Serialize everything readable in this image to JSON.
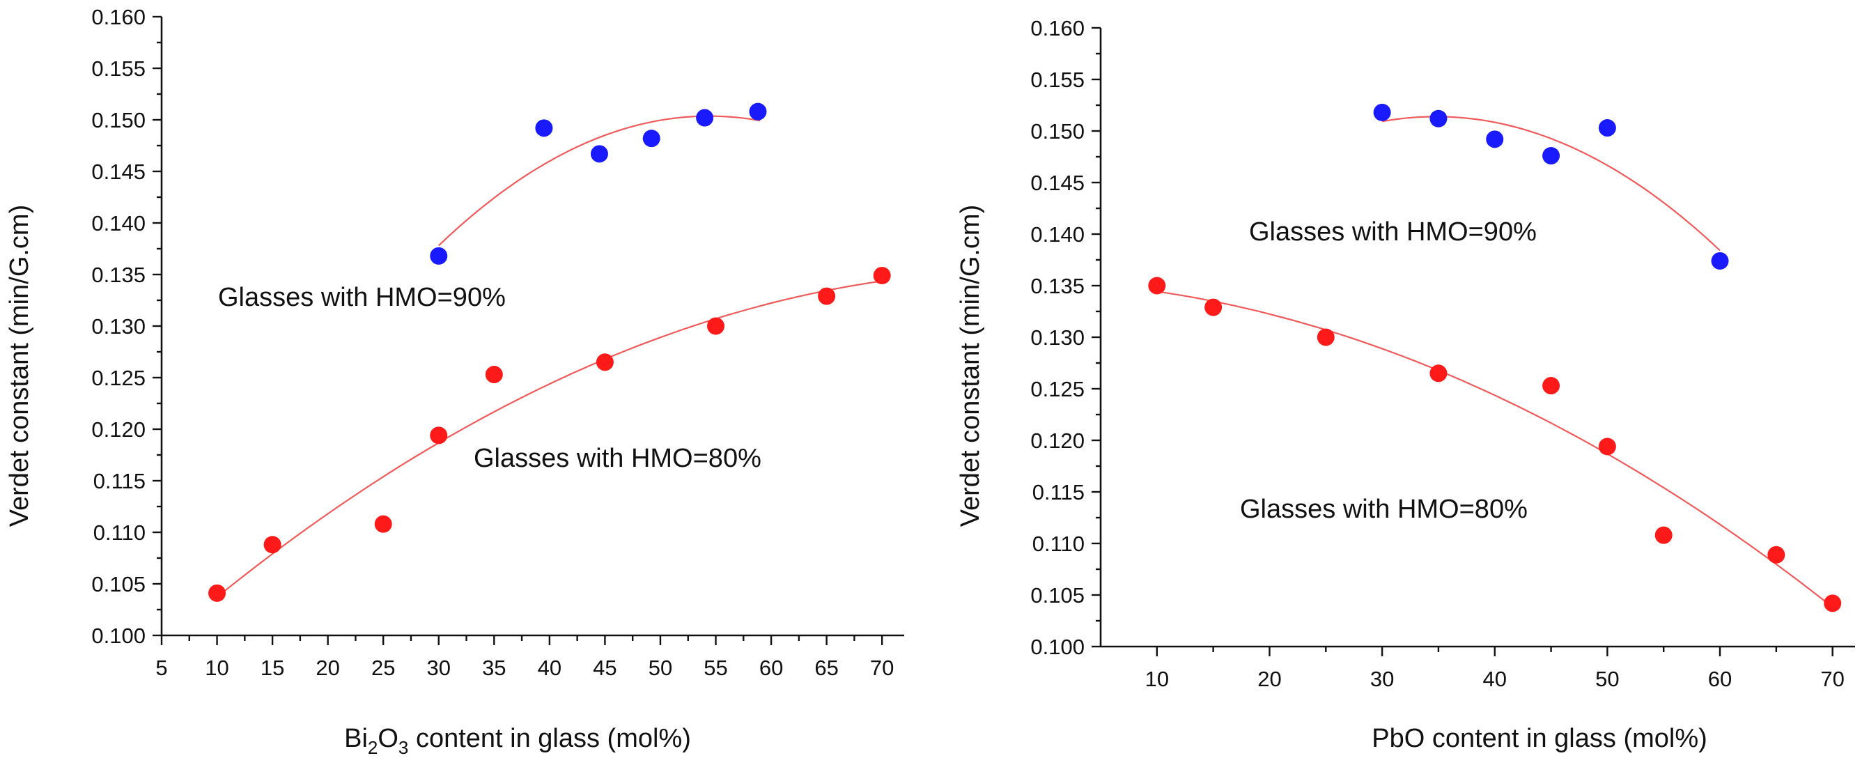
{
  "chart_data": [
    {
      "type": "scatter",
      "xlabel": {
        "pre": "Bi",
        "sub1": "2",
        "mid": "O",
        "sub2": "3",
        "post": " content in glass (mol%)"
      },
      "ylabel": "Verdet constant (min/G.cm)",
      "xlim": [
        5,
        72
      ],
      "ylim": [
        0.1,
        0.16
      ],
      "xticks": [
        "5",
        "10",
        "15",
        "20",
        "25",
        "30",
        "35",
        "40",
        "45",
        "50",
        "55",
        "60",
        "65",
        "70"
      ],
      "yticks": [
        "0.100",
        "0.105",
        "0.110",
        "0.115",
        "0.120",
        "0.125",
        "0.130",
        "0.135",
        "0.140",
        "0.145",
        "0.150",
        "0.155",
        "0.160"
      ],
      "series": [
        {
          "name": "Glasses with HMO=90%",
          "color": "#1a1aff",
          "points": [
            [
              30,
              0.1368
            ],
            [
              39.5,
              0.1492
            ],
            [
              44.5,
              0.1467
            ],
            [
              49.2,
              0.1482
            ],
            [
              54,
              0.1502
            ],
            [
              58.8,
              0.1508
            ]
          ],
          "fit_x": [
            30,
            59
          ]
        },
        {
          "name": "Glasses with HMO=80%",
          "color": "#ff1a1a",
          "points": [
            [
              10,
              0.1041
            ],
            [
              15,
              0.1088
            ],
            [
              25,
              0.1108
            ],
            [
              30,
              0.1194
            ],
            [
              35,
              0.1253
            ],
            [
              45,
              0.1265
            ],
            [
              55,
              0.13
            ],
            [
              65,
              0.1329
            ],
            [
              70,
              0.1349
            ]
          ],
          "fit_x": [
            10,
            70
          ]
        }
      ],
      "grid": false
    },
    {
      "type": "scatter",
      "xlabel": {
        "pre": "PbO content in glass (mol%)"
      },
      "ylabel": "Verdet constant (min/G.cm)",
      "xlim": [
        5,
        72
      ],
      "ylim": [
        0.1,
        0.16
      ],
      "xticks": [
        "10",
        "20",
        "30",
        "40",
        "50",
        "60",
        "70"
      ],
      "yticks": [
        "0.100",
        "0.105",
        "0.110",
        "0.115",
        "0.120",
        "0.125",
        "0.130",
        "0.135",
        "0.140",
        "0.145",
        "0.150",
        "0.155",
        "0.160"
      ],
      "series": [
        {
          "name": "Glasses with HMO=90%",
          "color": "#1a1aff",
          "points": [
            [
              30,
              0.1518
            ],
            [
              35,
              0.1512
            ],
            [
              40,
              0.1492
            ],
            [
              45,
              0.1476
            ],
            [
              50,
              0.1503
            ],
            [
              60,
              0.1374
            ]
          ],
          "fit_x": [
            30,
            60
          ]
        },
        {
          "name": "Glasses with HMO=80%",
          "color": "#ff1a1a",
          "points": [
            [
              10,
              0.135
            ],
            [
              15,
              0.1329
            ],
            [
              25,
              0.13
            ],
            [
              35,
              0.1265
            ],
            [
              45,
              0.1253
            ],
            [
              50,
              0.1194
            ],
            [
              55,
              0.1108
            ],
            [
              65,
              0.1089
            ],
            [
              70,
              0.1042
            ]
          ],
          "fit_x": [
            10,
            70
          ]
        }
      ],
      "grid": false
    }
  ]
}
